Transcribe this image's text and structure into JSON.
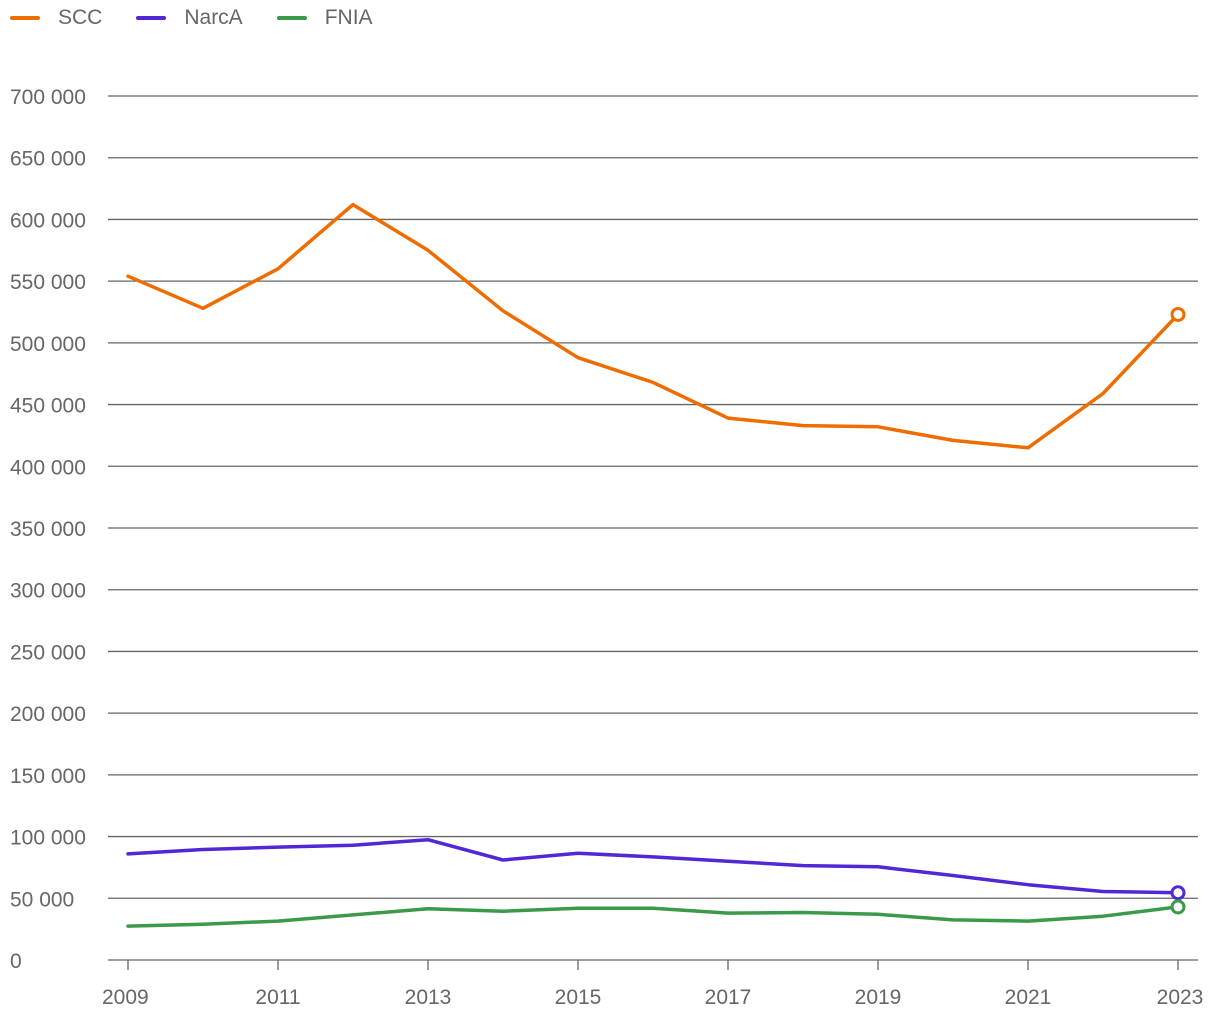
{
  "chart_data": {
    "type": "line",
    "title": "",
    "xlabel": "",
    "ylabel": "",
    "xlim": [
      2009,
      2023
    ],
    "ylim": [
      0,
      700000
    ],
    "y_ticks": [
      0,
      50000,
      100000,
      150000,
      200000,
      250000,
      300000,
      350000,
      400000,
      450000,
      500000,
      550000,
      600000,
      650000,
      700000
    ],
    "y_tick_labels": [
      "0",
      "50 000",
      "100 000",
      "150 000",
      "200 000",
      "250 000",
      "300 000",
      "350 000",
      "400 000",
      "450 000",
      "500 000",
      "550 000",
      "600 000",
      "650 000",
      "700 000"
    ],
    "x_ticks": [
      2009,
      2011,
      2013,
      2015,
      2017,
      2019,
      2021,
      2023
    ],
    "x_tick_labels": [
      "2009",
      "2011",
      "2013",
      "2015",
      "2017",
      "2019",
      "2021",
      "2023"
    ],
    "grid": true,
    "legend_position": "top-left",
    "x": [
      2009,
      2010,
      2011,
      2012,
      2013,
      2014,
      2015,
      2016,
      2017,
      2018,
      2019,
      2020,
      2021,
      2022,
      2023
    ],
    "series": [
      {
        "name": "SCC",
        "color": "#ef6c00",
        "values": [
          554000,
          528000,
          560000,
          612000,
          575000,
          526000,
          488000,
          468000,
          439000,
          433000,
          432000,
          421000,
          415000,
          459000,
          523000
        ]
      },
      {
        "name": "NarcA",
        "color": "#5128d4",
        "values": [
          86000,
          89500,
          91500,
          93000,
          97500,
          81000,
          86500,
          83500,
          80000,
          76500,
          75500,
          68500,
          61000,
          55500,
          54500
        ]
      },
      {
        "name": "FNIA",
        "color": "#3b9a4a",
        "values": [
          27500,
          29000,
          31500,
          36500,
          41500,
          39500,
          42000,
          42000,
          38000,
          38500,
          37000,
          32500,
          31500,
          35500,
          43000
        ]
      }
    ]
  }
}
